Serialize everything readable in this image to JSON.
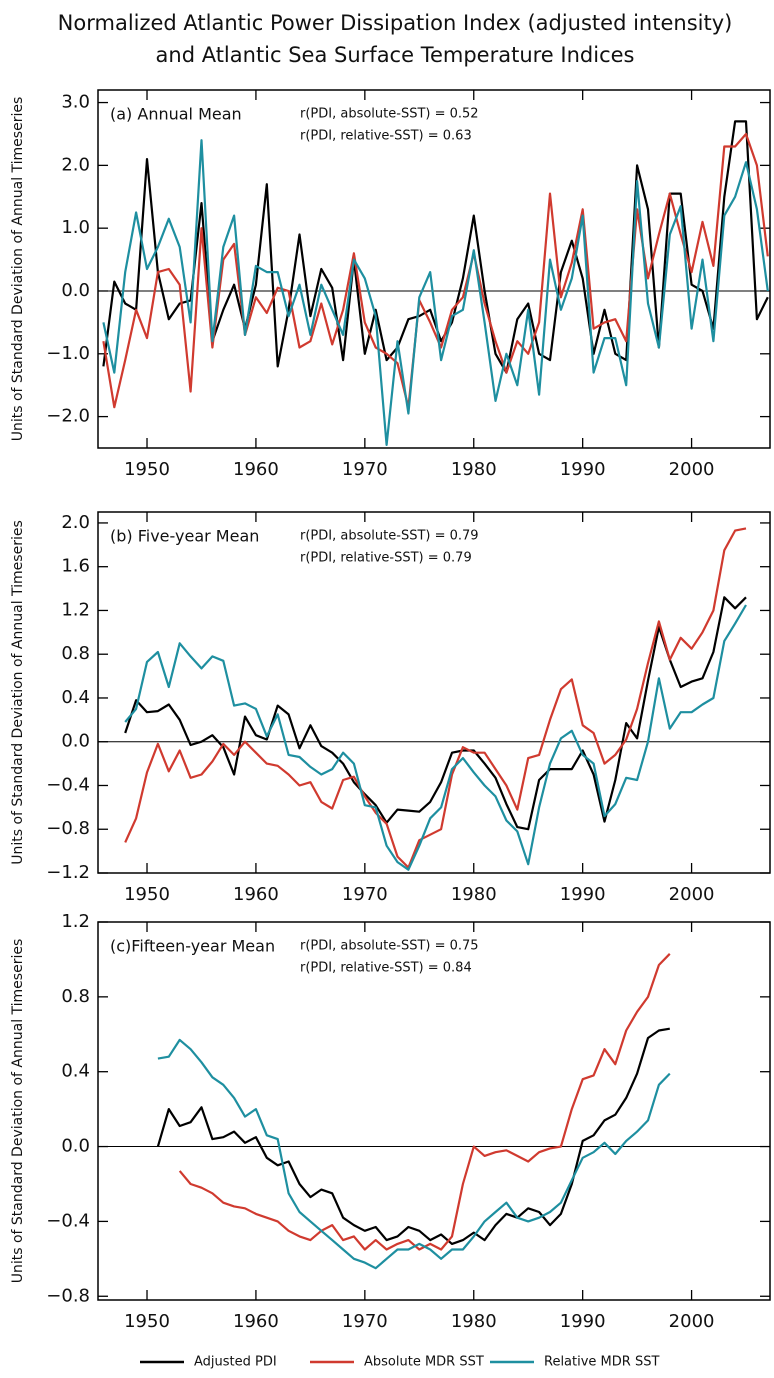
{
  "title": [
    "Normalized Atlantic Power Dissipation Index (adjusted intensity)",
    "and Atlantic Sea Surface Temperature Indices"
  ],
  "chart_data": [
    {
      "type": "line",
      "annotation": "(a) Annual Mean",
      "r_texts": [
        "r(PDI, absolute-SST) = 0.52",
        "r(PDI, relative-SST) = 0.63"
      ],
      "y_label": "Units of Standard Deviation of Annual Timeseries",
      "x": [
        1946,
        1947,
        1948,
        1949,
        1950,
        1951,
        1952,
        1953,
        1954,
        1955,
        1956,
        1957,
        1958,
        1959,
        1960,
        1961,
        1962,
        1963,
        1964,
        1965,
        1966,
        1967,
        1968,
        1969,
        1970,
        1971,
        1972,
        1973,
        1974,
        1975,
        1976,
        1977,
        1978,
        1979,
        1980,
        1981,
        1982,
        1983,
        1984,
        1985,
        1986,
        1987,
        1988,
        1989,
        1990,
        1991,
        1992,
        1993,
        1994,
        1995,
        1996,
        1997,
        1998,
        1999,
        2000,
        2001,
        2002,
        2003,
        2004,
        2005,
        2006,
        2007
      ],
      "series": [
        {
          "name": "Adjusted PDI",
          "color": "#000000",
          "values": [
            -1.2,
            0.15,
            -0.2,
            -0.3,
            2.1,
            0.3,
            -0.45,
            -0.2,
            -0.15,
            1.4,
            -0.8,
            -0.3,
            0.1,
            -0.6,
            0.1,
            1.7,
            -1.2,
            -0.3,
            0.9,
            -0.4,
            0.35,
            0.05,
            -1.1,
            0.5,
            -1.0,
            -0.3,
            -1.1,
            -0.9,
            -0.45,
            -0.4,
            -0.3,
            -0.8,
            -0.5,
            0.2,
            1.2,
            0.0,
            -1.0,
            -1.3,
            -0.45,
            -0.2,
            -1.0,
            -1.1,
            0.3,
            0.8,
            0.2,
            -1.0,
            -0.3,
            -1.0,
            -1.1,
            2.0,
            1.3,
            -0.9,
            1.55,
            1.55,
            0.1,
            0.0,
            -0.6,
            1.5,
            2.7,
            2.7,
            -0.45,
            -0.1
          ]
        },
        {
          "name": "Absolute MDR SST",
          "color": "#d03a2f",
          "values": [
            -0.8,
            -1.85,
            -1.1,
            -0.3,
            -0.75,
            0.3,
            0.35,
            0.1,
            -1.6,
            1.0,
            -0.9,
            0.5,
            0.75,
            -0.7,
            -0.1,
            -0.35,
            0.05,
            0.0,
            -0.9,
            -0.8,
            -0.2,
            -0.85,
            -0.3,
            0.6,
            -0.5,
            -0.9,
            -1.0,
            -1.15,
            -1.85,
            -0.15,
            -0.5,
            -0.9,
            -0.3,
            -0.1,
            0.6,
            -0.2,
            -0.8,
            -1.3,
            -0.8,
            -1.0,
            -0.5,
            1.55,
            -0.1,
            0.45,
            1.3,
            -0.6,
            -0.5,
            -0.45,
            -0.8,
            1.3,
            0.2,
            0.9,
            1.55,
            0.9,
            0.3,
            1.1,
            0.4,
            2.3,
            2.3,
            2.5,
            2.0,
            0.55
          ]
        },
        {
          "name": "Relative MDR SST",
          "color": "#1e8fa0",
          "values": [
            -0.5,
            -1.3,
            0.3,
            1.25,
            0.35,
            0.7,
            1.15,
            0.7,
            -0.5,
            2.4,
            -0.8,
            0.7,
            1.2,
            -0.7,
            0.4,
            0.3,
            0.3,
            -0.4,
            0.1,
            -0.7,
            0.1,
            -0.3,
            -0.7,
            0.5,
            0.2,
            -0.4,
            -2.45,
            -0.8,
            -1.95,
            -0.1,
            0.3,
            -1.1,
            -0.4,
            -0.3,
            0.65,
            -0.5,
            -1.75,
            -1.0,
            -1.5,
            -0.3,
            -1.65,
            0.5,
            -0.3,
            0.2,
            1.2,
            -1.3,
            -0.75,
            -0.75,
            -1.5,
            1.75,
            -0.2,
            -0.9,
            0.9,
            1.35,
            -0.6,
            0.5,
            -0.8,
            1.2,
            1.5,
            2.05,
            1.3,
            0.0
          ]
        }
      ],
      "xlim": [
        1945.5,
        2007.2
      ],
      "xticks": [
        1950,
        1960,
        1970,
        1980,
        1990,
        2000
      ],
      "ylim": [
        -2.5,
        3.2
      ],
      "yticks": [
        {
          "value": 3.0,
          "label": "3.0"
        },
        {
          "value": 2.0,
          "label": "2.0"
        },
        {
          "value": 1.0,
          "label": "1.0"
        },
        {
          "value": 0.0,
          "label": "0.0"
        },
        {
          "value": -1.0,
          "label": "−1.0"
        },
        {
          "value": -2.0,
          "label": "−2.0"
        }
      ]
    },
    {
      "type": "line",
      "annotation": "(b) Five-year Mean",
      "r_texts": [
        "r(PDI, absolute-SST) = 0.79",
        "r(PDI, relative-SST) = 0.79"
      ],
      "y_label": "Units of Standard Deviation of Annual Timeseries",
      "x": [
        1948,
        1949,
        1950,
        1951,
        1952,
        1953,
        1954,
        1955,
        1956,
        1957,
        1958,
        1959,
        1960,
        1961,
        1962,
        1963,
        1964,
        1965,
        1966,
        1967,
        1968,
        1969,
        1970,
        1971,
        1972,
        1973,
        1974,
        1975,
        1976,
        1977,
        1978,
        1979,
        1980,
        1981,
        1982,
        1983,
        1984,
        1985,
        1986,
        1987,
        1988,
        1989,
        1990,
        1991,
        1992,
        1993,
        1994,
        1995,
        1996,
        1997,
        1998,
        1999,
        2000,
        2001,
        2002,
        2003,
        2004,
        2005
      ],
      "series": [
        {
          "name": "Adjusted PDI",
          "color": "#000000",
          "values": [
            0.08,
            0.38,
            0.27,
            0.28,
            0.34,
            0.2,
            -0.03,
            0.0,
            0.06,
            -0.05,
            -0.3,
            0.23,
            0.06,
            0.02,
            0.33,
            0.25,
            -0.06,
            0.15,
            -0.04,
            -0.1,
            -0.2,
            -0.37,
            -0.48,
            -0.58,
            -0.74,
            -0.62,
            -0.63,
            -0.64,
            -0.55,
            -0.37,
            -0.1,
            -0.08,
            -0.08,
            -0.2,
            -0.33,
            -0.57,
            -0.78,
            -0.8,
            -0.35,
            -0.25,
            -0.25,
            -0.25,
            -0.08,
            -0.3,
            -0.73,
            -0.35,
            0.17,
            0.03,
            0.56,
            1.05,
            0.75,
            0.5,
            0.55,
            0.58,
            0.82,
            1.32,
            1.22,
            1.32
          ]
        },
        {
          "name": "Absolute MDR SST",
          "color": "#d03a2f",
          "values": [
            -0.92,
            -0.7,
            -0.28,
            -0.02,
            -0.27,
            -0.08,
            -0.33,
            -0.3,
            -0.18,
            -0.02,
            -0.12,
            0.0,
            -0.1,
            -0.2,
            -0.22,
            -0.3,
            -0.4,
            -0.37,
            -0.55,
            -0.61,
            -0.35,
            -0.32,
            -0.5,
            -0.65,
            -0.75,
            -1.05,
            -1.15,
            -0.9,
            -0.85,
            -0.8,
            -0.3,
            -0.05,
            -0.1,
            -0.1,
            -0.25,
            -0.4,
            -0.62,
            -0.15,
            -0.12,
            0.2,
            0.48,
            0.57,
            0.15,
            0.08,
            -0.2,
            -0.12,
            0.02,
            0.3,
            0.72,
            1.1,
            0.75,
            0.95,
            0.85,
            1.0,
            1.2,
            1.75,
            1.93,
            1.95
          ]
        },
        {
          "name": "Relative MDR SST",
          "color": "#1e8fa0",
          "values": [
            0.18,
            0.3,
            0.73,
            0.82,
            0.5,
            0.9,
            0.78,
            0.67,
            0.78,
            0.74,
            0.33,
            0.35,
            0.3,
            0.05,
            0.25,
            -0.12,
            -0.14,
            -0.23,
            -0.3,
            -0.25,
            -0.1,
            -0.2,
            -0.58,
            -0.6,
            -0.95,
            -1.1,
            -1.17,
            -0.95,
            -0.7,
            -0.6,
            -0.25,
            -0.15,
            -0.28,
            -0.4,
            -0.5,
            -0.72,
            -0.82,
            -1.12,
            -0.6,
            -0.2,
            0.03,
            0.1,
            -0.12,
            -0.2,
            -0.68,
            -0.57,
            -0.33,
            -0.35,
            0.0,
            0.58,
            0.12,
            0.27,
            0.27,
            0.34,
            0.4,
            0.92,
            1.08,
            1.25
          ]
        }
      ],
      "xlim": [
        1945.5,
        2007.2
      ],
      "xticks": [
        1950,
        1960,
        1970,
        1980,
        1990,
        2000
      ],
      "ylim": [
        -1.2,
        2.1
      ],
      "yticks": [
        {
          "value": 2.0,
          "label": "2.0"
        },
        {
          "value": 1.6,
          "label": "1.6"
        },
        {
          "value": 1.2,
          "label": "1.2"
        },
        {
          "value": 0.8,
          "label": "0.8"
        },
        {
          "value": 0.4,
          "label": "0.4"
        },
        {
          "value": 0.0,
          "label": "0.0"
        },
        {
          "value": -0.4,
          "label": "−0.4"
        },
        {
          "value": -0.8,
          "label": "−0.8"
        },
        {
          "value": -1.2,
          "label": "−1.2"
        }
      ]
    },
    {
      "type": "line",
      "annotation": "(c)Fifteen-year Mean",
      "r_texts": [
        "r(PDI, absolute-SST) = 0.75",
        "r(PDI, relative-SST) = 0.84"
      ],
      "y_label": "Units of Standard Deviation of Annual Timeseries",
      "legend": "bottom",
      "x": [
        1951,
        1952,
        1953,
        1954,
        1955,
        1956,
        1957,
        1958,
        1959,
        1960,
        1961,
        1962,
        1963,
        1964,
        1965,
        1966,
        1967,
        1968,
        1969,
        1970,
        1971,
        1972,
        1973,
        1974,
        1975,
        1976,
        1977,
        1978,
        1979,
        1980,
        1981,
        1982,
        1983,
        1984,
        1985,
        1986,
        1987,
        1988,
        1989,
        1990,
        1991,
        1992,
        1993,
        1994,
        1995,
        1996,
        1997,
        1998
      ],
      "series": [
        {
          "name": "Adjusted PDI",
          "color": "#000000",
          "values": [
            0.0,
            0.2,
            0.11,
            0.13,
            0.21,
            0.04,
            0.05,
            0.08,
            0.02,
            0.05,
            -0.06,
            -0.1,
            -0.08,
            -0.2,
            -0.27,
            -0.23,
            -0.25,
            -0.38,
            -0.42,
            -0.45,
            -0.43,
            -0.5,
            -0.48,
            -0.43,
            -0.45,
            -0.5,
            -0.47,
            -0.52,
            -0.5,
            -0.46,
            -0.5,
            -0.42,
            -0.36,
            -0.38,
            -0.33,
            -0.35,
            -0.42,
            -0.36,
            -0.2,
            0.03,
            0.06,
            0.14,
            0.17,
            0.26,
            0.39,
            0.58,
            0.62,
            0.63
          ]
        },
        {
          "name": "Absolute MDR SST",
          "color": "#d03a2f",
          "values": [
            null,
            null,
            -0.13,
            -0.2,
            -0.22,
            -0.25,
            -0.3,
            -0.32,
            -0.33,
            -0.36,
            -0.38,
            -0.4,
            -0.45,
            -0.48,
            -0.5,
            -0.45,
            -0.42,
            -0.5,
            -0.48,
            -0.55,
            -0.5,
            -0.55,
            -0.52,
            -0.5,
            -0.55,
            -0.52,
            -0.55,
            -0.48,
            -0.2,
            0.0,
            -0.05,
            -0.03,
            -0.02,
            -0.05,
            -0.08,
            -0.03,
            -0.01,
            0.0,
            0.2,
            0.36,
            0.38,
            0.52,
            0.44,
            0.62,
            0.72,
            0.8,
            0.97,
            1.03
          ]
        },
        {
          "name": "Relative MDR SST",
          "color": "#1e8fa0",
          "values": [
            0.47,
            0.48,
            0.57,
            0.52,
            0.45,
            0.37,
            0.33,
            0.26,
            0.16,
            0.2,
            0.06,
            0.04,
            -0.25,
            -0.35,
            -0.4,
            -0.45,
            -0.5,
            -0.55,
            -0.6,
            -0.62,
            -0.65,
            -0.6,
            -0.55,
            -0.55,
            -0.52,
            -0.55,
            -0.6,
            -0.55,
            -0.55,
            -0.48,
            -0.4,
            -0.35,
            -0.3,
            -0.38,
            -0.4,
            -0.38,
            -0.35,
            -0.3,
            -0.18,
            -0.06,
            -0.03,
            0.02,
            -0.04,
            0.03,
            0.08,
            0.14,
            0.33,
            0.39
          ]
        }
      ],
      "xlim": [
        1945.5,
        2007.2
      ],
      "xticks": [
        1950,
        1960,
        1970,
        1980,
        1990,
        2000
      ],
      "ylim": [
        -0.82,
        1.2
      ],
      "yticks": [
        {
          "value": 1.2,
          "label": "1.2"
        },
        {
          "value": 0.8,
          "label": "0.8"
        },
        {
          "value": 0.4,
          "label": "0.4"
        },
        {
          "value": 0.0,
          "label": "0.0"
        },
        {
          "value": -0.4,
          "label": "−0.4"
        },
        {
          "value": -0.8,
          "label": "−0.8"
        }
      ]
    }
  ]
}
